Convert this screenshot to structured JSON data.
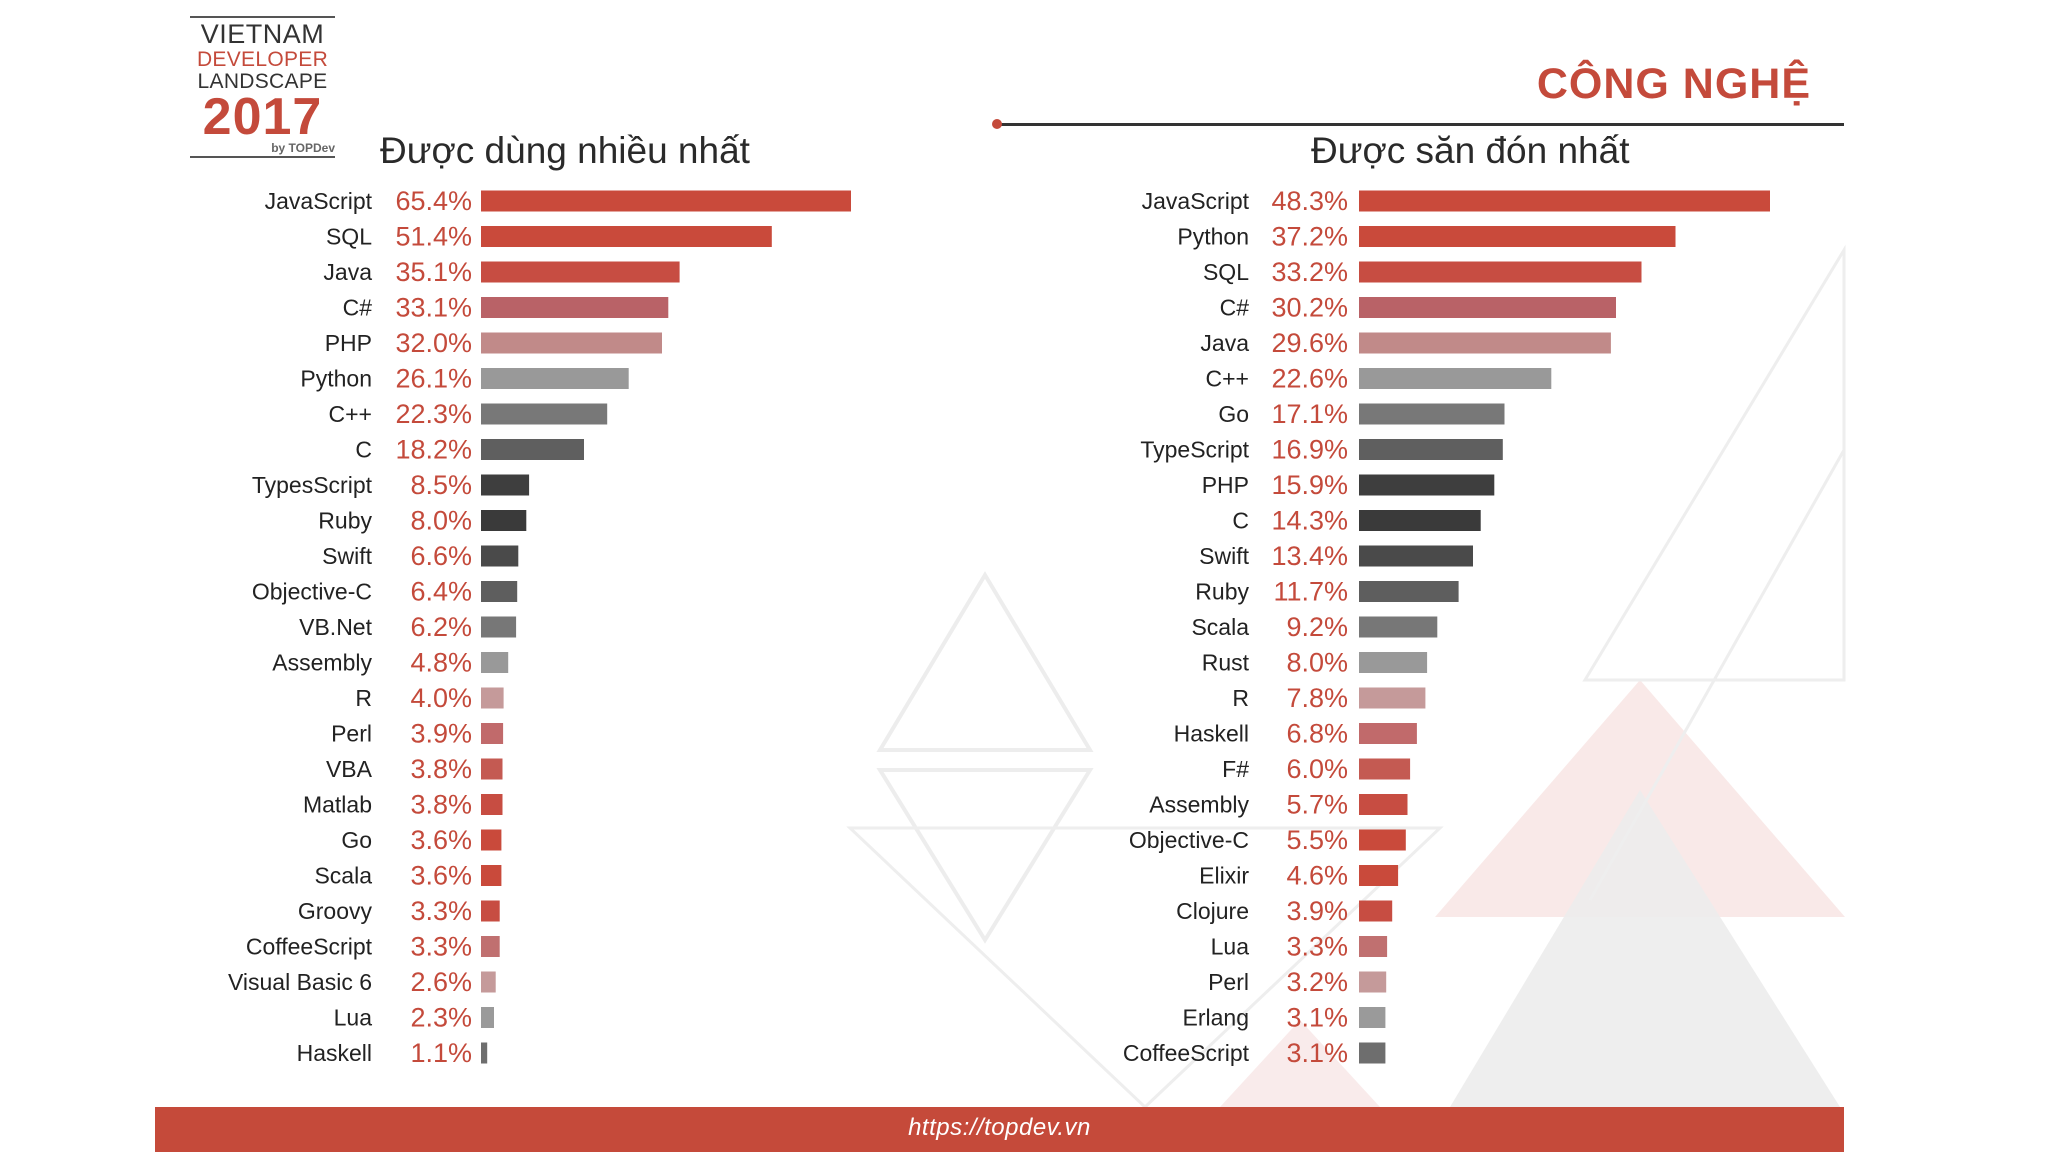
{
  "logo": {
    "line1": "VIETNAM",
    "line2": "DEVELOPER",
    "line3": "LANDSCAPE",
    "year": "2017",
    "by": "by TOPDev"
  },
  "section_title": "CÔNG NGHỆ",
  "footer": {
    "url": "https://topdev.vn"
  },
  "colors": {
    "accent": "#c44a3b",
    "footer_bg": "#c54a3a"
  },
  "chart_data": [
    {
      "type": "bar",
      "orientation": "horizontal",
      "title": "Được dùng nhiều nhất",
      "xlabel": "",
      "ylabel": "",
      "xlim": [
        0,
        65.4
      ],
      "categories": [
        "JavaScript",
        "SQL",
        "Java",
        "C#",
        "PHP",
        "Python",
        "C++",
        "C",
        "TypesScript",
        "Ruby",
        "Swift",
        "Objective-C",
        "VB.Net",
        "Assembly",
        "R",
        "Perl",
        "VBA",
        "Matlab",
        "Go",
        "Scala",
        "Groovy",
        "CoffeeScript",
        "Visual Basic 6",
        "Lua",
        "Haskell"
      ],
      "values": [
        65.4,
        51.4,
        35.1,
        33.1,
        32.0,
        26.1,
        22.3,
        18.2,
        8.5,
        8.0,
        6.6,
        6.4,
        6.2,
        4.8,
        4.0,
        3.9,
        3.8,
        3.8,
        3.6,
        3.6,
        3.3,
        3.3,
        2.6,
        2.3,
        1.1
      ],
      "value_labels": [
        "65.4%",
        "51.4%",
        "35.1%",
        "33.1%",
        "32.0%",
        "26.1%",
        "22.3%",
        "18.2%",
        "8.5%",
        "8.0%",
        "6.6%",
        "6.4%",
        "6.2%",
        "4.8%",
        "4.0%",
        "3.9%",
        "3.8%",
        "3.8%",
        "3.6%",
        "3.6%",
        "3.3%",
        "3.3%",
        "2.6%",
        "2.3%",
        "1.1%"
      ],
      "bar_colors": [
        "#c94a3b",
        "#c94a3b",
        "#c74d42",
        "#b96267",
        "#c18a89",
        "#999999",
        "#787878",
        "#5f5f5f",
        "#3e3e3e",
        "#3a3a3a",
        "#4a4a4a",
        "#5e5e5e",
        "#777777",
        "#999999",
        "#c59a9a",
        "#c16a6b",
        "#c45a52",
        "#c74d42",
        "#c94a3b",
        "#c94a3b",
        "#c74d42",
        "#c07070",
        "#c59a9a",
        "#9a9a9a",
        "#6e6e6e"
      ]
    },
    {
      "type": "bar",
      "orientation": "horizontal",
      "title": "Được săn đón nhất",
      "xlabel": "",
      "ylabel": "",
      "xlim": [
        0,
        48.3
      ],
      "categories": [
        "JavaScript",
        "Python",
        "SQL",
        "C#",
        "Java",
        "C++",
        "Go",
        "TypeScript",
        "PHP",
        "C",
        "Swift",
        "Ruby",
        "Scala",
        "Rust",
        "R",
        "Haskell",
        "F#",
        "Assembly",
        "Objective-C",
        "Elixir",
        "Clojure",
        "Lua",
        "Perl",
        "Erlang",
        "CoffeeScript"
      ],
      "values": [
        48.3,
        37.2,
        33.2,
        30.2,
        29.6,
        22.6,
        17.1,
        16.9,
        15.9,
        14.3,
        13.4,
        11.7,
        9.2,
        8.0,
        7.8,
        6.8,
        6.0,
        5.7,
        5.5,
        4.6,
        3.9,
        3.3,
        3.2,
        3.1,
        3.1
      ],
      "value_labels": [
        "48.3%",
        "37.2%",
        "33.2%",
        "30.2%",
        "29.6%",
        "22.6%",
        "17.1%",
        "16.9%",
        "15.9%",
        "14.3%",
        "13.4%",
        "11.7%",
        "9.2%",
        "8.0%",
        "7.8%",
        "6.8%",
        "6.0%",
        "5.7%",
        "5.5%",
        "4.6%",
        "3.9%",
        "3.3%",
        "3.2%",
        "3.1%",
        "3.1%"
      ],
      "bar_colors": [
        "#c94a3b",
        "#c94a3b",
        "#c74d42",
        "#b96267",
        "#c18a89",
        "#999999",
        "#787878",
        "#5f5f5f",
        "#3e3e3e",
        "#3a3a3a",
        "#4a4a4a",
        "#5e5e5e",
        "#777777",
        "#999999",
        "#c59a9a",
        "#c16a6b",
        "#c45a52",
        "#c74d42",
        "#c94a3b",
        "#c94a3b",
        "#c74d42",
        "#c07070",
        "#c59a9a",
        "#9a9a9a",
        "#6e6e6e"
      ]
    }
  ]
}
